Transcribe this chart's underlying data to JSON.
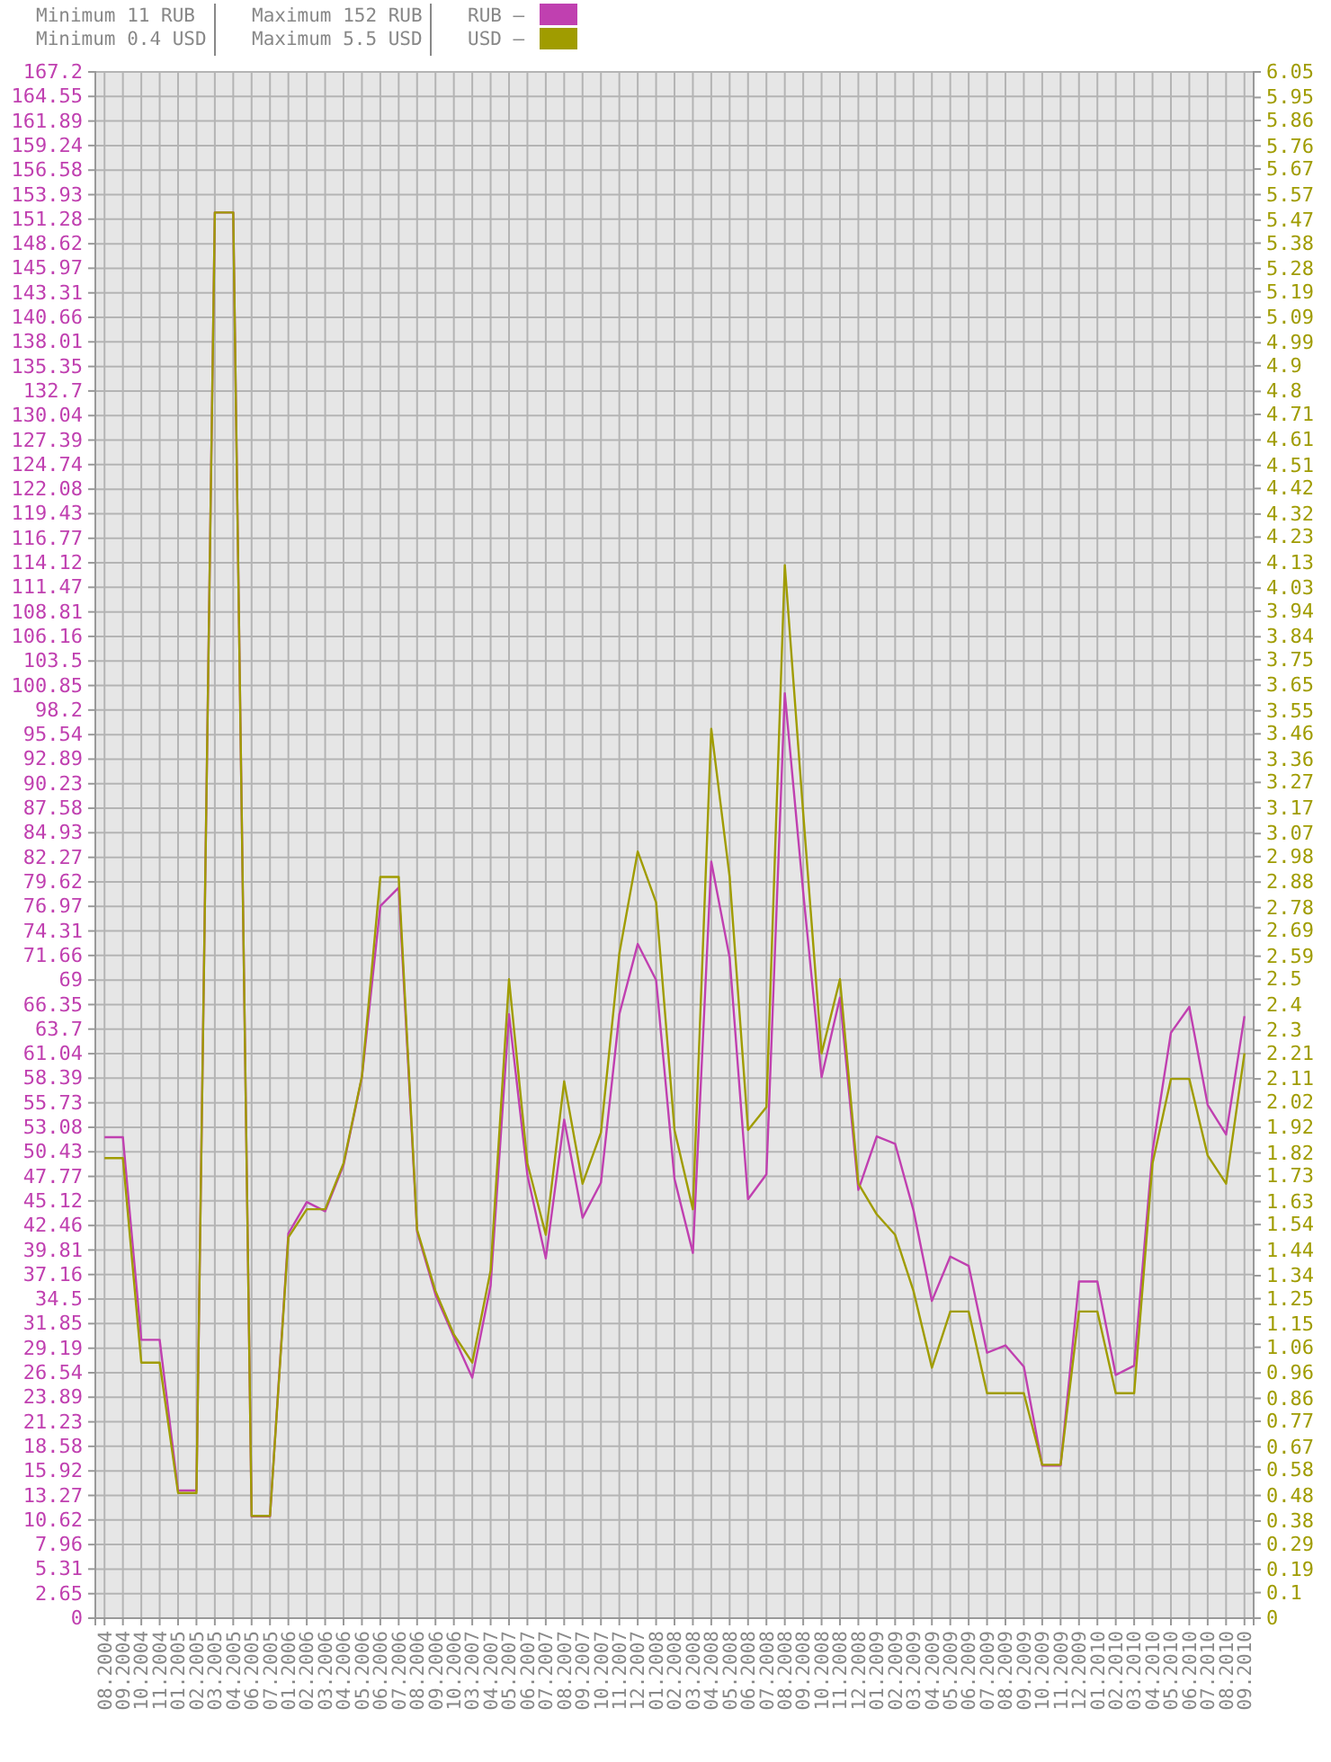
{
  "chart_data": {
    "type": "line",
    "annotations": [
      "Minimum 11 RUB",
      "Minimum 0.4 USD",
      "Maximum 152 RUB",
      "Maximum 5.5 USD"
    ],
    "categories": [
      "08.2004",
      "09.2004",
      "10.2004",
      "11.2004",
      "01.2005",
      "02.2005",
      "03.2005",
      "04.2005",
      "06.2005",
      "07.2005",
      "01.2006",
      "02.2006",
      "03.2006",
      "04.2006",
      "05.2006",
      "06.2006",
      "07.2006",
      "08.2006",
      "09.2006",
      "10.2006",
      "03.2007",
      "04.2007",
      "05.2007",
      "06.2007",
      "07.2007",
      "08.2007",
      "09.2007",
      "10.2007",
      "11.2007",
      "12.2007",
      "01.2008",
      "02.2008",
      "03.2008",
      "04.2008",
      "05.2008",
      "06.2008",
      "07.2008",
      "08.2008",
      "09.2008",
      "10.2008",
      "11.2008",
      "12.2008",
      "01.2009",
      "02.2009",
      "03.2009",
      "04.2009",
      "05.2009",
      "06.2009",
      "07.2009",
      "08.2009",
      "09.2009",
      "10.2009",
      "11.2009",
      "12.2009",
      "01.2010",
      "02.2010",
      "03.2010",
      "04.2010",
      "05.2010",
      "06.2010",
      "07.2010",
      "08.2010",
      "09.2010"
    ],
    "series": [
      {
        "name": "RUB –",
        "color": "#c040b0",
        "axis": "y",
        "values": [
          52,
          52,
          30.1,
          30.1,
          13.8,
          13.8,
          152,
          152,
          11,
          11,
          41.6,
          45,
          44,
          49,
          58.5,
          77,
          79,
          41.8,
          35,
          30.4,
          26,
          36,
          65.3,
          47.9,
          38.9,
          53.9,
          43.3,
          47.1,
          65.3,
          72.9,
          69,
          47.5,
          39.5,
          81.8,
          71.4,
          45.3,
          48,
          100,
          78.5,
          58.5,
          67.1,
          46.3,
          52.1,
          51.3,
          44.1,
          34.3,
          39.1,
          38.1,
          28.7,
          29.5,
          27.2,
          16.5,
          16.5,
          36.4,
          36.4,
          26.3,
          27.3,
          50.5,
          63.3,
          66.1,
          55.5,
          52.3,
          65.1
        ]
      },
      {
        "name": "USD –",
        "color": "#a09c00",
        "axis": "y2",
        "values": [
          1.8,
          1.8,
          1,
          1,
          0.49,
          0.49,
          5.5,
          5.5,
          0.4,
          0.4,
          1.49,
          1.6,
          1.6,
          1.78,
          2.12,
          2.9,
          2.9,
          1.52,
          1.28,
          1.11,
          1,
          1.36,
          2.5,
          1.78,
          1.5,
          2.1,
          1.7,
          1.9,
          2.6,
          3,
          2.8,
          1.91,
          1.6,
          3.48,
          2.9,
          1.91,
          2,
          4.12,
          3.15,
          2.21,
          2.5,
          1.7,
          1.58,
          1.5,
          1.28,
          0.98,
          1.2,
          1.2,
          0.88,
          0.88,
          0.88,
          0.6,
          0.6,
          1.2,
          1.2,
          0.88,
          0.88,
          1.78,
          2.11,
          2.11,
          1.81,
          1.7,
          2.21
        ]
      }
    ],
    "ylim": [
      0,
      167.2
    ],
    "yticks": [
      0,
      2.65,
      5.31,
      7.96,
      10.62,
      13.27,
      15.92,
      18.58,
      21.23,
      23.89,
      26.54,
      29.19,
      31.85,
      34.5,
      37.16,
      39.81,
      42.46,
      45.12,
      47.77,
      50.43,
      53.08,
      55.73,
      58.39,
      61.04,
      63.7,
      66.35,
      69,
      71.66,
      74.31,
      76.97,
      79.62,
      82.27,
      84.93,
      87.58,
      90.23,
      92.89,
      95.54,
      98.2,
      100.85,
      103.5,
      106.16,
      108.81,
      111.47,
      114.12,
      116.77,
      119.43,
      122.08,
      124.74,
      127.39,
      130.04,
      132.7,
      135.35,
      138.01,
      140.66,
      143.31,
      145.97,
      148.62,
      151.28,
      153.93,
      156.58,
      159.24,
      161.89,
      164.55,
      167.2
    ],
    "y2lim": [
      0,
      6.05
    ],
    "y2ticks": [
      0,
      0.1,
      0.19,
      0.29,
      0.38,
      0.48,
      0.58,
      0.67,
      0.77,
      0.86,
      0.96,
      1.06,
      1.15,
      1.25,
      1.34,
      1.44,
      1.54,
      1.63,
      1.73,
      1.82,
      1.92,
      2.02,
      2.11,
      2.21,
      2.3,
      2.4,
      2.5,
      2.59,
      2.69,
      2.78,
      2.88,
      2.98,
      3.07,
      3.17,
      3.27,
      3.36,
      3.46,
      3.55,
      3.65,
      3.75,
      3.84,
      3.94,
      4.03,
      4.13,
      4.23,
      4.32,
      4.42,
      4.51,
      4.61,
      4.71,
      4.8,
      4.9,
      4.99,
      5.09,
      5.19,
      5.28,
      5.38,
      5.47,
      5.57,
      5.67,
      5.76,
      5.86,
      5.95,
      6.05
    ],
    "grid": true,
    "legend": "top"
  }
}
